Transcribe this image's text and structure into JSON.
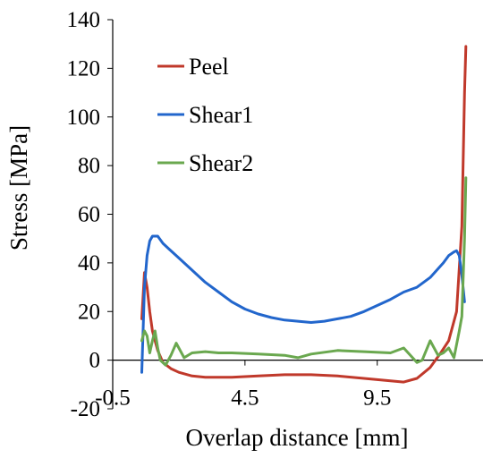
{
  "chart_data": {
    "type": "line",
    "xlabel": "Overlap distance [mm]",
    "ylabel": "Stress [MPa]",
    "xlim": [
      -0.5,
      13.5
    ],
    "ylim": [
      -20,
      140
    ],
    "xticks": [
      -0.5,
      4.5,
      9.5
    ],
    "xtick_labels": [
      "-0.5",
      "4.5",
      "9.5"
    ],
    "yticks": [
      -20,
      0,
      20,
      40,
      60,
      80,
      100,
      120,
      140
    ],
    "ytick_labels": [
      "-20",
      "0",
      "20",
      "40",
      "60",
      "80",
      "100",
      "120",
      "140"
    ],
    "grid": false,
    "legend": "top-left",
    "series": [
      {
        "name": "Peel",
        "color": "#c0392b",
        "x": [
          0.6,
          0.7,
          0.8,
          0.9,
          1.0,
          1.2,
          1.4,
          1.7,
          2.0,
          2.5,
          3.0,
          4.0,
          5.0,
          6.0,
          7.0,
          8.0,
          9.0,
          9.5,
          10.0,
          10.5,
          11.0,
          11.5,
          11.9,
          12.2,
          12.5,
          12.7,
          12.8,
          12.85
        ],
        "y": [
          17,
          36,
          30,
          20,
          12,
          4,
          -1,
          -3.5,
          -5,
          -6.5,
          -7,
          -7,
          -6.5,
          -6,
          -6,
          -6.5,
          -7.5,
          -8,
          -8.5,
          -9,
          -7.5,
          -3,
          3,
          8,
          20,
          55,
          110,
          129
        ]
      },
      {
        "name": "Shear1",
        "color": "#2266cc",
        "x": [
          0.6,
          0.7,
          0.8,
          0.9,
          1.0,
          1.2,
          1.4,
          1.6,
          1.8,
          2.0,
          2.5,
          3.0,
          3.5,
          4.0,
          4.5,
          5.0,
          5.5,
          6.0,
          6.5,
          7.0,
          7.5,
          8.0,
          8.5,
          9.0,
          9.5,
          10.0,
          10.5,
          11.0,
          11.5,
          12.0,
          12.2,
          12.4,
          12.5,
          12.6,
          12.7,
          12.8
        ],
        "y": [
          -5,
          30,
          43,
          49,
          51,
          51,
          48,
          46,
          44,
          42,
          37,
          32,
          28,
          24,
          21,
          19,
          17.5,
          16.5,
          16,
          15.5,
          16,
          17,
          18,
          20,
          22.5,
          25,
          28,
          30,
          34,
          40,
          43,
          44.5,
          45,
          43,
          35,
          24
        ]
      },
      {
        "name": "Shear2",
        "color": "#6aa84f",
        "x": [
          0.6,
          0.7,
          0.8,
          0.9,
          1.0,
          1.1,
          1.2,
          1.3,
          1.5,
          1.7,
          1.9,
          2.2,
          2.5,
          3.0,
          3.5,
          4.0,
          5.0,
          6.0,
          6.5,
          7.0,
          8.0,
          9.0,
          10.0,
          10.5,
          11.0,
          11.2,
          11.5,
          11.8,
          12.0,
          12.2,
          12.4,
          12.6,
          12.7,
          12.8,
          12.85
        ],
        "y": [
          8,
          12,
          10,
          3,
          8,
          12,
          5,
          0,
          -2,
          2,
          7,
          1,
          3,
          3.5,
          3,
          3,
          2.5,
          2,
          1,
          2.5,
          4,
          3.5,
          3,
          5,
          -1,
          0,
          8,
          2,
          3,
          5,
          1,
          12,
          18,
          50,
          75
        ]
      }
    ]
  }
}
